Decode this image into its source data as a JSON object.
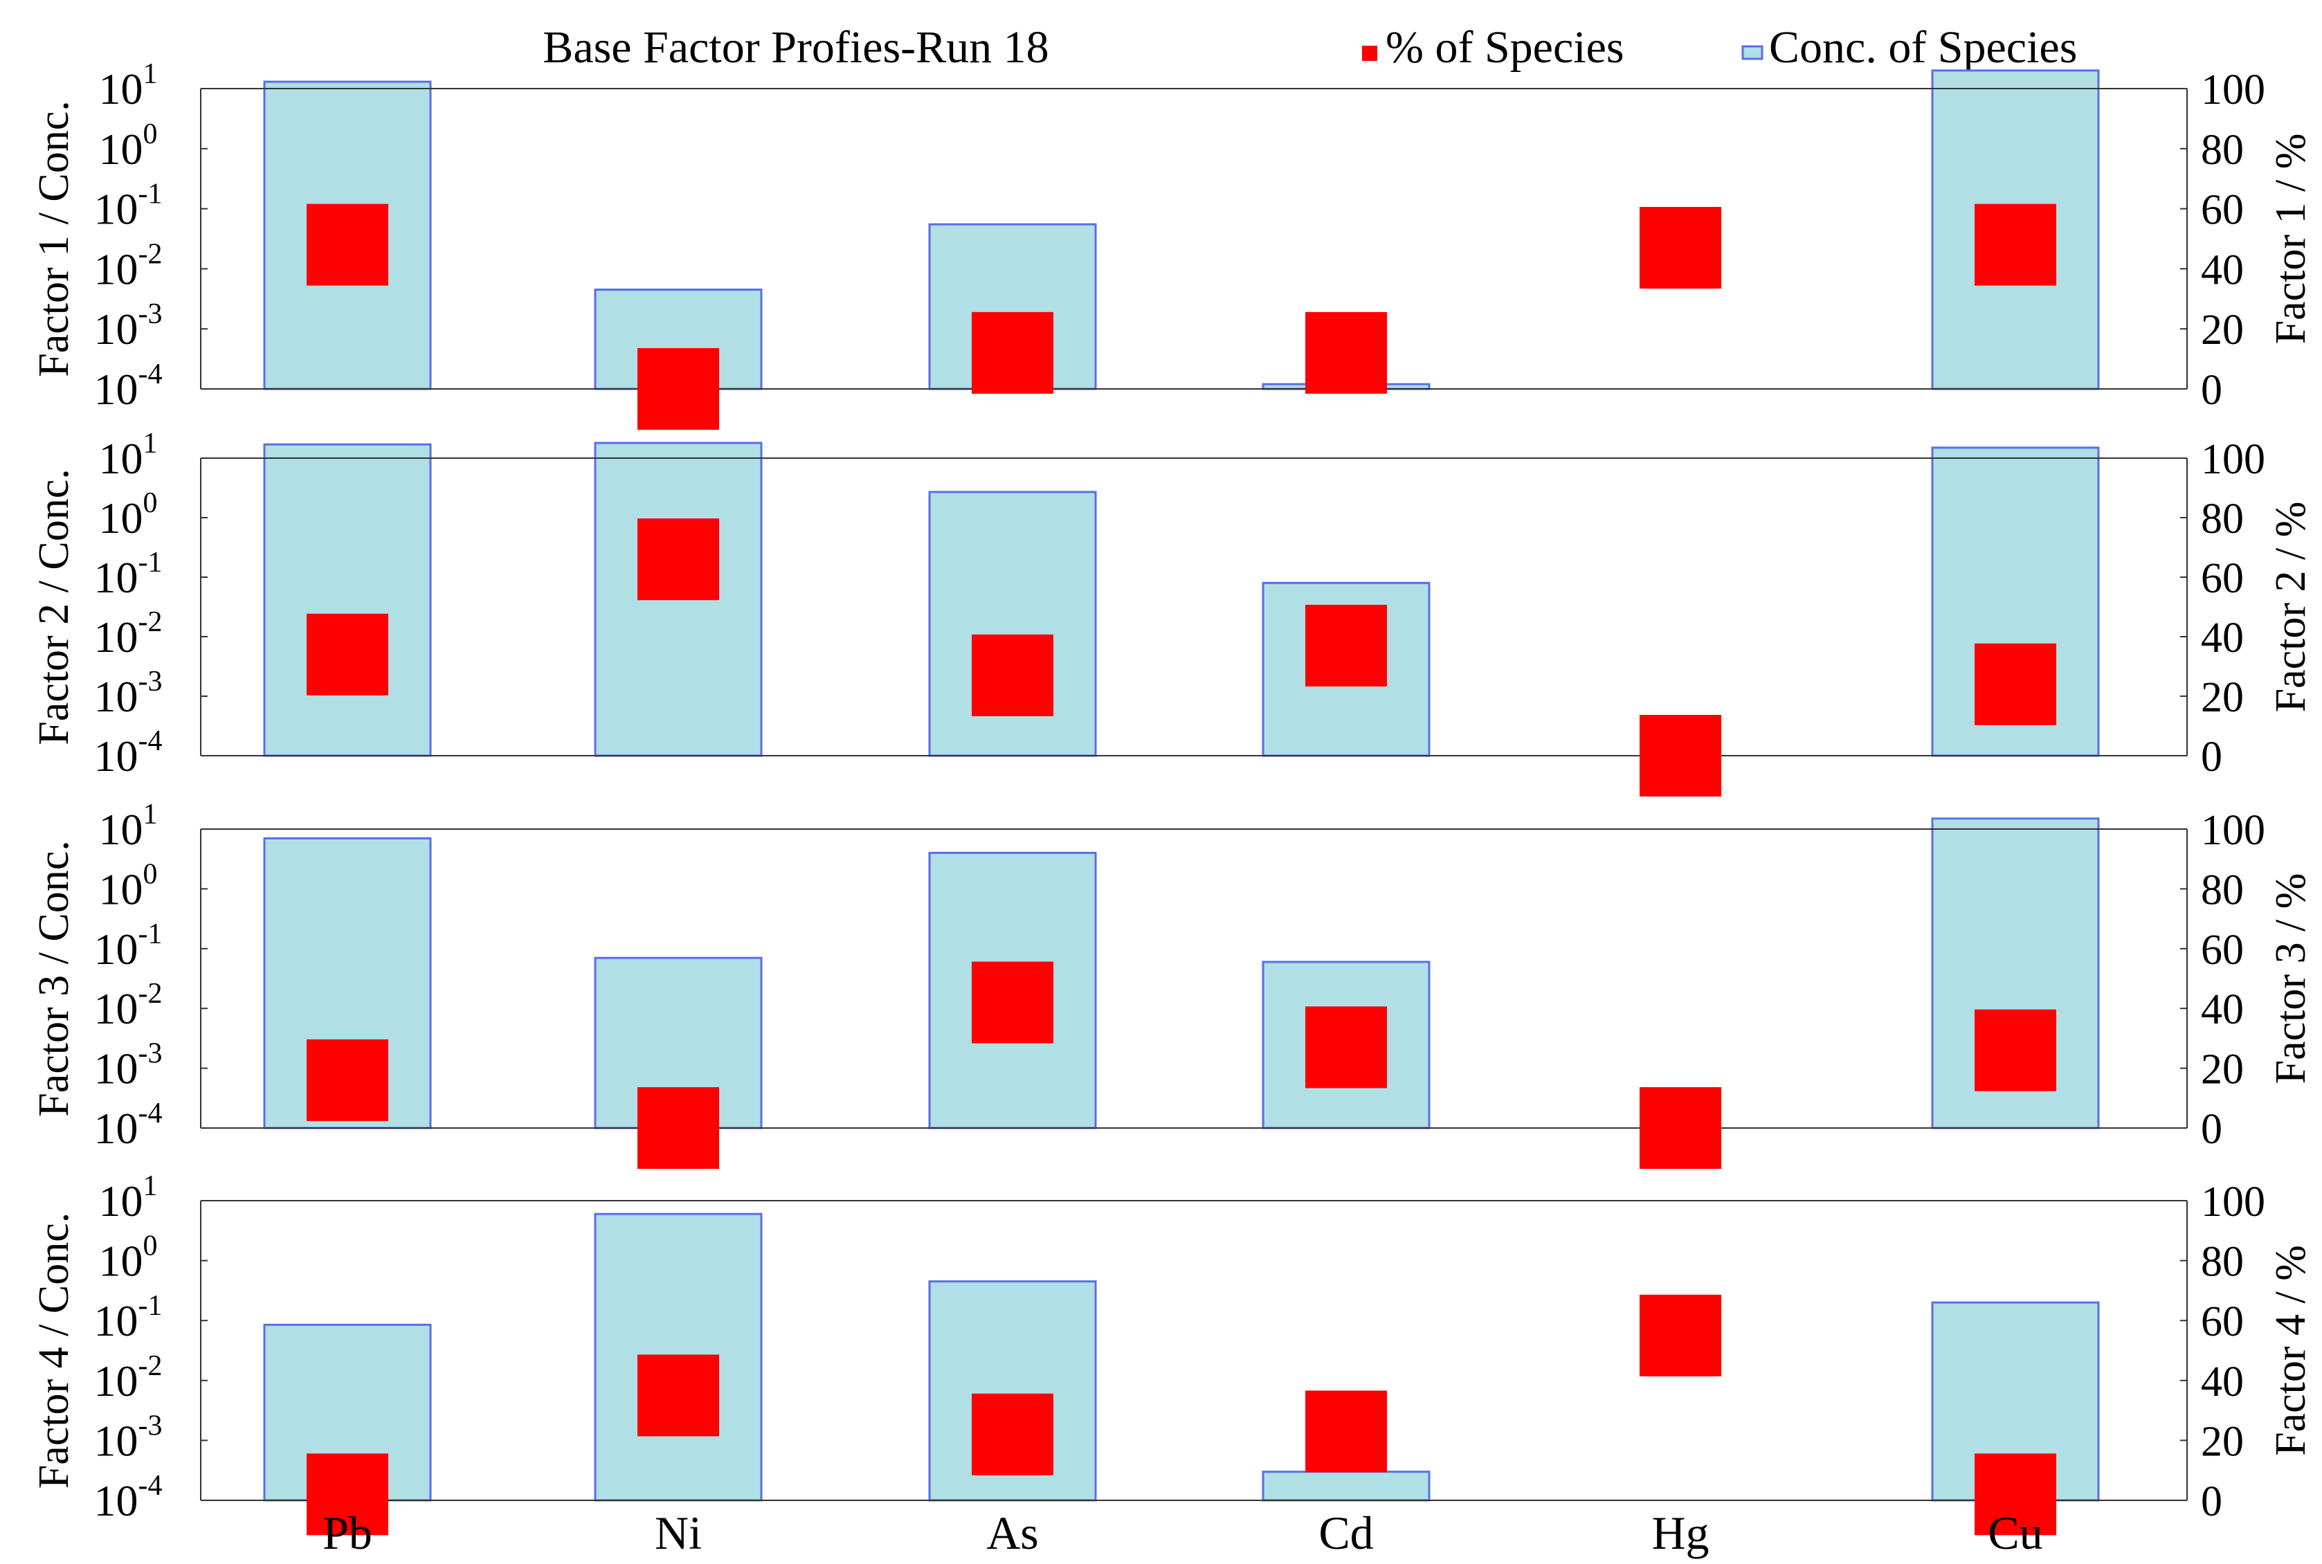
{
  "chart_data": {
    "type": "bar",
    "title": "Base Factor Profies-Run 18",
    "legend_position": "top-right",
    "legend": [
      {
        "name": "% of Species",
        "color": "#ff0000"
      },
      {
        "name": "Conc. of Species",
        "color": "#b0dfe5",
        "edge": "#5a6ee8"
      }
    ],
    "categories": [
      "Pb",
      "Ni",
      "As",
      "Cd",
      "Hg",
      "Cu"
    ],
    "y_scale": "log",
    "ylim": [
      0.0001,
      10
    ],
    "y_tick_labels": [
      "10^1",
      "10^0",
      "10^-1",
      "10^-2",
      "10^-3",
      "10^-4"
    ],
    "y2lim": [
      0,
      100
    ],
    "y2_ticks": [
      "100",
      "80",
      "60",
      "40",
      "20",
      "0"
    ],
    "grid": false,
    "colors": {
      "percent": "#ff0000",
      "conc_fill": "#b0dfe5",
      "conc_edge": "#5a6ee8"
    },
    "panels": [
      {
        "ylabel": "Factor 1 / Conc.",
        "y2label": "Factor 1 / %",
        "conc": [
          13,
          0.0045,
          0.055,
          0.00012,
          null,
          20
        ],
        "percent": [
          48,
          0,
          12,
          12,
          47,
          48
        ]
      },
      {
        "ylabel": "Factor 2 / Conc.",
        "y2label": "Factor 2 / %",
        "conc": [
          17,
          18,
          2.7,
          0.08,
          null,
          15
        ],
        "percent": [
          34,
          66,
          27,
          37,
          0,
          24
        ]
      },
      {
        "ylabel": "Factor 3 / Conc.",
        "y2label": "Factor 3 / %",
        "conc": [
          7,
          0.07,
          4,
          0.06,
          null,
          15
        ],
        "percent": [
          16,
          0,
          42,
          27,
          0,
          26
        ]
      },
      {
        "ylabel": "Factor 4 / Conc.",
        "y2label": "Factor 4 / %",
        "conc": [
          0.085,
          6,
          0.45,
          0.0003,
          null,
          0.2
        ],
        "percent": [
          2,
          35,
          22,
          23,
          55,
          2
        ]
      }
    ]
  }
}
